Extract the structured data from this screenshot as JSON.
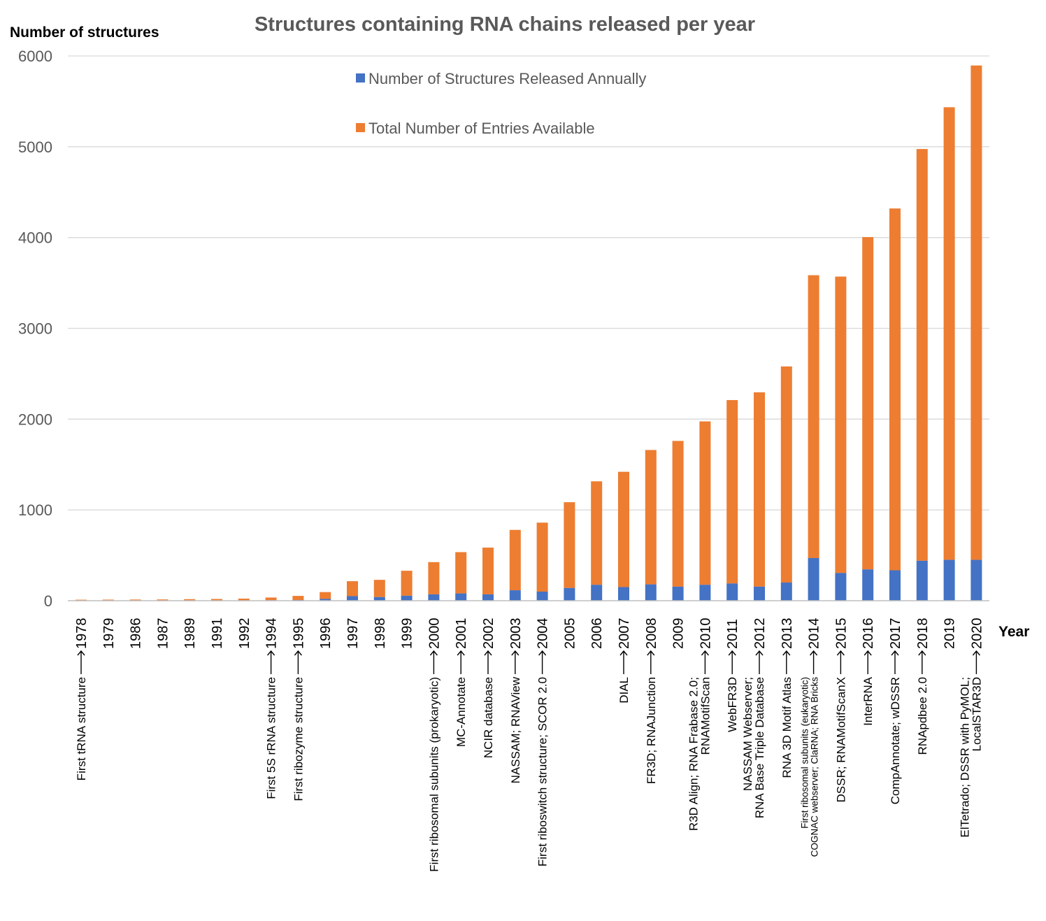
{
  "chart_data": {
    "type": "bar",
    "stacked": true,
    "title": "Structures containing RNA chains released per year",
    "ylabel": "Number of structures",
    "xlabel": "Year",
    "ylim": [
      0,
      6000
    ],
    "yticks": [
      "0",
      "1000",
      "2000",
      "3000",
      "4000",
      "5000",
      "6000"
    ],
    "grid": true,
    "legend_position": "top-center",
    "categories": [
      "1978",
      "1979",
      "1986",
      "1987",
      "1989",
      "1991",
      "1992",
      "1994",
      "1995",
      "1996",
      "1997",
      "1998",
      "1999",
      "2000",
      "2001",
      "2002",
      "2003",
      "2004",
      "2005",
      "2006",
      "2007",
      "2008",
      "2009",
      "2010",
      "2011",
      "2012",
      "2013",
      "2014",
      "2015",
      "2016",
      "2017",
      "2018",
      "2019",
      "2020"
    ],
    "series": [
      {
        "name": "Number of Structures Released Annually",
        "color": "#4472c4",
        "values": [
          1,
          1,
          1,
          1,
          2,
          2,
          3,
          5,
          8,
          20,
          50,
          40,
          55,
          70,
          80,
          70,
          115,
          100,
          140,
          175,
          150,
          180,
          155,
          175,
          190,
          155,
          200,
          470,
          305,
          345,
          335,
          440,
          450,
          450
        ]
      },
      {
        "name": "Total Number of Entries Available",
        "color": "#ed7d31",
        "values": [
          10,
          11,
          12,
          13,
          15,
          17,
          20,
          30,
          45,
          75,
          165,
          190,
          275,
          355,
          455,
          515,
          665,
          760,
          945,
          1140,
          1270,
          1480,
          1605,
          1800,
          2020,
          2140,
          2380,
          3115,
          3265,
          3660,
          3985,
          4535,
          4985,
          5445
        ]
      }
    ],
    "annotations": [
      {
        "year": "1978",
        "lines": [
          "First tRNA structure"
        ]
      },
      {
        "year": "1994",
        "lines": [
          "First 5S rRNA structure"
        ]
      },
      {
        "year": "1995",
        "lines": [
          "First ribozyme structure"
        ]
      },
      {
        "year": "2000",
        "lines": [
          "First ribosomal subunits (prokaryotic)"
        ]
      },
      {
        "year": "2001",
        "lines": [
          "MC-Annotate"
        ]
      },
      {
        "year": "2002",
        "lines": [
          "NCIR database"
        ]
      },
      {
        "year": "2003",
        "lines": [
          "NASSAM; RNAView"
        ]
      },
      {
        "year": "2004",
        "lines": [
          "First riboswitch structure; SCOR 2.0"
        ]
      },
      {
        "year": "2007",
        "lines": [
          "DIAL"
        ]
      },
      {
        "year": "2008",
        "lines": [
          "FR3D; RNAJunction"
        ]
      },
      {
        "year": "2010",
        "lines": [
          "R3D Align; RNA Frabase 2.0;",
          "RNAMotifScan"
        ]
      },
      {
        "year": "2011",
        "lines": [
          "WebFR3D"
        ]
      },
      {
        "year": "2012",
        "lines": [
          "NASSAM Webserver;",
          "RNA Base Triple Database"
        ]
      },
      {
        "year": "2013",
        "lines": [
          "RNA 3D Motif Atlas"
        ]
      },
      {
        "year": "2014",
        "lines": [
          "First ribosomal subunits (eukaryotic)",
          "COGNAC webserver; ClaRNA; RNA Bricks"
        ]
      },
      {
        "year": "2015",
        "lines": [
          "DSSR; RNAMotifScanX"
        ]
      },
      {
        "year": "2016",
        "lines": [
          "InterRNA"
        ]
      },
      {
        "year": "2017",
        "lines": [
          "CompAnnotate; wDSSR"
        ]
      },
      {
        "year": "2018",
        "lines": [
          "RNApdbee 2.0"
        ]
      },
      {
        "year": "2020",
        "lines": [
          "ElTetrado; DSSR with PyMOL;",
          "LocalSTAR3D"
        ]
      }
    ]
  }
}
